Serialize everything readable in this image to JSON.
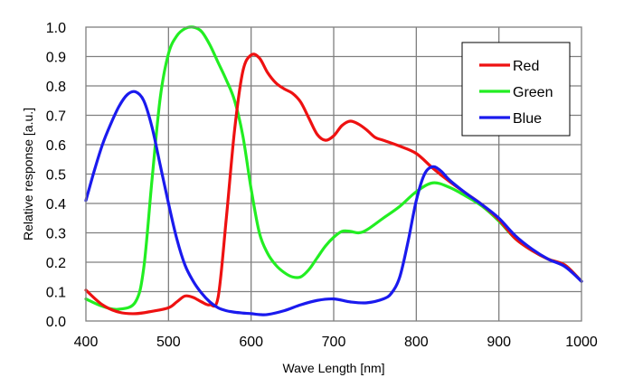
{
  "chart_data": {
    "type": "line",
    "title": "",
    "xlabel": "Wave Length [nm]",
    "ylabel": "Relative response [a.u.]",
    "xlim": [
      400,
      1000
    ],
    "ylim": [
      0,
      1.0
    ],
    "xticks": [
      400,
      500,
      600,
      700,
      800,
      900,
      1000
    ],
    "xtick_labels": [
      "400",
      "500",
      "600",
      "700",
      "800",
      "900",
      "1000"
    ],
    "yticks": [
      0,
      0.1,
      0.2,
      0.3,
      0.4,
      0.5,
      0.6,
      0.7,
      0.8,
      0.9,
      1.0
    ],
    "ytick_labels": [
      "0.0",
      "0.1",
      "0.2",
      "0.3",
      "0.4",
      "0.5",
      "0.6",
      "0.7",
      "0.8",
      "0.9",
      "1.0"
    ],
    "grid": true,
    "legend": {
      "position": "top-right",
      "entries": [
        "Red",
        "Green",
        "Blue"
      ]
    },
    "series": [
      {
        "name": "Red",
        "color": "#ee1111",
        "x": [
          400,
          420,
          440,
          460,
          480,
          500,
          510,
          520,
          530,
          540,
          550,
          560,
          570,
          580,
          590,
          600,
          610,
          620,
          630,
          640,
          650,
          660,
          670,
          680,
          690,
          700,
          710,
          720,
          730,
          740,
          750,
          760,
          780,
          800,
          820,
          840,
          860,
          880,
          900,
          920,
          940,
          960,
          980,
          1000
        ],
        "y": [
          0.105,
          0.055,
          0.03,
          0.025,
          0.033,
          0.045,
          0.065,
          0.085,
          0.08,
          0.065,
          0.055,
          0.08,
          0.35,
          0.65,
          0.85,
          0.905,
          0.895,
          0.845,
          0.81,
          0.79,
          0.775,
          0.745,
          0.69,
          0.635,
          0.615,
          0.63,
          0.665,
          0.68,
          0.67,
          0.65,
          0.625,
          0.615,
          0.595,
          0.57,
          0.52,
          0.475,
          0.435,
          0.395,
          0.345,
          0.28,
          0.24,
          0.21,
          0.19,
          0.135
        ]
      },
      {
        "name": "Green",
        "color": "#22ee22",
        "x": [
          400,
          420,
          440,
          460,
          470,
          480,
          490,
          500,
          510,
          520,
          530,
          540,
          550,
          560,
          570,
          580,
          590,
          600,
          610,
          620,
          630,
          640,
          650,
          660,
          670,
          680,
          690,
          700,
          710,
          720,
          730,
          740,
          760,
          780,
          800,
          820,
          840,
          860,
          880,
          900,
          920,
          940,
          960,
          980,
          1000
        ],
        "y": [
          0.075,
          0.05,
          0.04,
          0.065,
          0.18,
          0.48,
          0.76,
          0.91,
          0.97,
          0.995,
          1.0,
          0.985,
          0.94,
          0.88,
          0.82,
          0.75,
          0.63,
          0.45,
          0.3,
          0.23,
          0.19,
          0.165,
          0.15,
          0.15,
          0.175,
          0.215,
          0.255,
          0.285,
          0.305,
          0.305,
          0.3,
          0.31,
          0.35,
          0.39,
          0.44,
          0.47,
          0.455,
          0.425,
          0.39,
          0.34,
          0.28,
          0.24,
          0.21,
          0.19,
          0.135
        ]
      },
      {
        "name": "Blue",
        "color": "#1a1aee",
        "x": [
          400,
          410,
          420,
          430,
          440,
          450,
          460,
          470,
          480,
          490,
          500,
          510,
          520,
          530,
          540,
          550,
          560,
          570,
          580,
          590,
          600,
          610,
          620,
          640,
          660,
          680,
          700,
          720,
          740,
          760,
          770,
          780,
          790,
          800,
          810,
          820,
          830,
          840,
          860,
          880,
          900,
          920,
          940,
          960,
          980,
          1000
        ],
        "y": [
          0.41,
          0.51,
          0.6,
          0.67,
          0.73,
          0.77,
          0.78,
          0.75,
          0.66,
          0.53,
          0.4,
          0.28,
          0.19,
          0.135,
          0.095,
          0.065,
          0.045,
          0.035,
          0.03,
          0.027,
          0.025,
          0.022,
          0.022,
          0.035,
          0.055,
          0.07,
          0.075,
          0.065,
          0.062,
          0.075,
          0.095,
          0.15,
          0.27,
          0.41,
          0.5,
          0.525,
          0.51,
          0.48,
          0.435,
          0.395,
          0.35,
          0.29,
          0.245,
          0.21,
          0.185,
          0.135
        ]
      }
    ]
  }
}
